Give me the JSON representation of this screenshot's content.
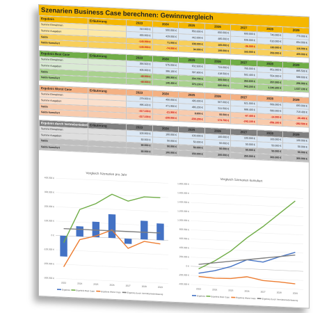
{
  "title": "Szenarien Business Case berechnen: Gewinnvergleich",
  "years": [
    "2023",
    "2024",
    "2025",
    "2026",
    "2027",
    "2028",
    "2029"
  ],
  "erlaeuterung": "Erläuterung",
  "sections": [
    {
      "key": "base",
      "color_header": "#f5b700",
      "color_light": "#fce8a6",
      "color_mid": "#f8cf5a",
      "title": "Ergebnis",
      "rows": [
        {
          "label": "Summe Einnahmen",
          "values": [
            "310.000 €",
            "500.000 €",
            "550.000 €",
            "650.000 €",
            "600.000 €",
            "740.000 €",
            "770.000 €"
          ]
        },
        {
          "label": "Summe Ausgaben",
          "values": [
            "455.000 €",
            "429.000 €",
            "442.000 €",
            "485.000 €",
            "636.000 €",
            "610.000 €",
            "654.000 €"
          ]
        },
        {
          "label": "Saldo",
          "values": [
            "-145.000 €",
            "71.000 €",
            "108.000 €",
            "165.000 €",
            "-36.000 €",
            "130.000 €",
            "116.000 €"
          ]
        },
        {
          "label": "Saldo kumuliert",
          "values": [
            "-145.000 €",
            "-74.000 €",
            "34.000 €",
            "199.000 €",
            "163.000 €",
            "293.000 €",
            "409.000 €"
          ]
        }
      ]
    },
    {
      "key": "best",
      "color_header": "#70ad47",
      "color_light": "#d9ead3",
      "color_mid": "#a9d18e",
      "title": "Ergebnis Best Case",
      "rows": [
        {
          "label": "Summe Einnahmen",
          "values": [
            "356.500 €",
            "575.000 €",
            "632.500 €",
            "724.000 €",
            "765.000 €",
            "851.000 €",
            "885.500 €"
          ]
        },
        {
          "label": "Summe Ausgaben",
          "values": [
            "405.000 €",
            "386.100 €",
            "397.800 €",
            "418.500 €",
            "502.400 €",
            "554.000 €",
            "588.600 €"
          ]
        },
        {
          "label": "Saldo",
          "values": [
            "-48.500 €",
            "188.900 €",
            "234.700 €",
            "305.500 €",
            "262.600 €",
            "297.000 €",
            "296.900 €"
          ]
        },
        {
          "label": "Saldo kumuliert",
          "values": [
            "-48.500 €",
            "140.400 €",
            "375.100 €",
            "680.600 €",
            "943.200 €",
            "1.240.200 €",
            "1.537.100 €"
          ]
        }
      ]
    },
    {
      "key": "worst",
      "color_header": "#f4b183",
      "color_light": "#fbe0cc",
      "color_mid": "#f8cbad",
      "title": "Ergebnis Worst Case",
      "rows": [
        {
          "label": "Summe Einnahmen",
          "values": [
            "279.000 €",
            "450.000 €",
            "495.000 €",
            "567.000 €",
            "621.000 €",
            "666.000 €",
            "693.000 €"
          ]
        },
        {
          "label": "Summe Ausgaben",
          "values": [
            "496.100 €",
            "471.900 €",
            "486.200 €",
            "511.500 €",
            "688.400 €",
            "680.000 €",
            "719.400 €"
          ]
        },
        {
          "label": "Saldo",
          "values": [
            "-217.100 €",
            "-21.900 €",
            "8.800 €",
            "55.500 €",
            "-67.400 €",
            "-14.000 €",
            "-26.400 €"
          ]
        },
        {
          "label": "Saldo kumuliert",
          "values": [
            "-217.100 €",
            "-239.000 €",
            "-230.200 €",
            "-174.700 €",
            "-242.100 €",
            "-256.100 €",
            "-282.500 €"
          ]
        }
      ]
    },
    {
      "key": "vert",
      "color_header": "#7f7f7f",
      "color_light": "#dedede",
      "color_mid": "#bfbfbf",
      "title": "Ergebnis durch Vertriebsniederlassung",
      "rows": [
        {
          "label": "Summe Einnahmen",
          "values": [
            "100.000 €",
            "100.000 €",
            "100.000 €",
            "100.000 €",
            "100.000 €",
            "100.000 €",
            "100.000 €"
          ]
        },
        {
          "label": "Summe Ausgaben",
          "values": [
            "50.000 €",
            "50.000 €",
            "50.000 €",
            "50.000 €",
            "50.000 €",
            "50.000 €",
            "50.000 €"
          ]
        },
        {
          "label": "Saldo",
          "values": [
            "50.000 €",
            "50.000 €",
            "50.000 €",
            "50.000 €",
            "50.000 €",
            "50.000 €",
            "50.000 €"
          ]
        },
        {
          "label": "Saldo kumuliert",
          "values": [
            "50.000 €",
            "100.000 €",
            "150.000 €",
            "200.000 €",
            "250.000 €",
            "300.000 €",
            "350.000 €"
          ]
        }
      ]
    }
  ],
  "chart_data": [
    {
      "type": "bar",
      "title": "Vergleich Szenarien pro Jahr",
      "categories": [
        "2023",
        "2024",
        "2025",
        "2026",
        "2027",
        "2028",
        "2029"
      ],
      "ylim": [
        -300000,
        400000
      ],
      "yticks": [
        "400.000 €",
        "300.000 €",
        "200.000 €",
        "100.000 €",
        "0 €",
        "-100.000 €",
        "-200.000 €",
        "-300.000 €"
      ],
      "series": [
        {
          "name": "Ergebnis",
          "kind": "bar",
          "color": "#4472c4",
          "values": [
            -145000,
            71000,
            108000,
            165000,
            -36000,
            130000,
            116000
          ]
        },
        {
          "name": "Ergebnis Best Case",
          "kind": "line",
          "color": "#70ad47",
          "values": [
            -48500,
            188900,
            234700,
            305500,
            262600,
            297000,
            296900
          ]
        },
        {
          "name": "Ergebnis Worst Case",
          "kind": "line",
          "color": "#ed7d31",
          "values": [
            -217100,
            -21900,
            8800,
            55500,
            -67400,
            -14000,
            -26400
          ]
        },
        {
          "name": "Ergebnis durch Vertriebsniederlassung",
          "kind": "line",
          "color": "#7f7f7f",
          "values": [
            50000,
            50000,
            50000,
            50000,
            50000,
            50000,
            50000
          ]
        }
      ]
    },
    {
      "type": "line",
      "title": "Vergleich Szenarien kumuliert",
      "categories": [
        "2023",
        "2024",
        "2025",
        "2026",
        "2027",
        "2028",
        "2029"
      ],
      "ylim": [
        -400000,
        1800000
      ],
      "yticks": [
        "1.800.000 €",
        "1.600.000 €",
        "1.400.000 €",
        "1.200.000 €",
        "1.000.000 €",
        "800.000 €",
        "600.000 €",
        "400.000 €",
        "200.000 €",
        "0 €",
        "-200.000 €",
        "-400.000 €"
      ],
      "series": [
        {
          "name": "Ergebnis",
          "color": "#4472c4",
          "values": [
            -145000,
            -74000,
            34000,
            199000,
            163000,
            293000,
            409000
          ]
        },
        {
          "name": "Ergebnis Best Case",
          "color": "#70ad47",
          "values": [
            -48500,
            140400,
            375100,
            680600,
            943200,
            1240200,
            1537100
          ]
        },
        {
          "name": "Ergebnis Worst Case",
          "color": "#ed7d31",
          "values": [
            -217100,
            -239000,
            -230200,
            -174700,
            -242100,
            -256100,
            -282500
          ]
        },
        {
          "name": "Ergebnis durch Vertriebsniederlassung",
          "color": "#7f7f7f",
          "values": [
            50000,
            100000,
            150000,
            200000,
            250000,
            300000,
            350000
          ]
        }
      ]
    }
  ]
}
